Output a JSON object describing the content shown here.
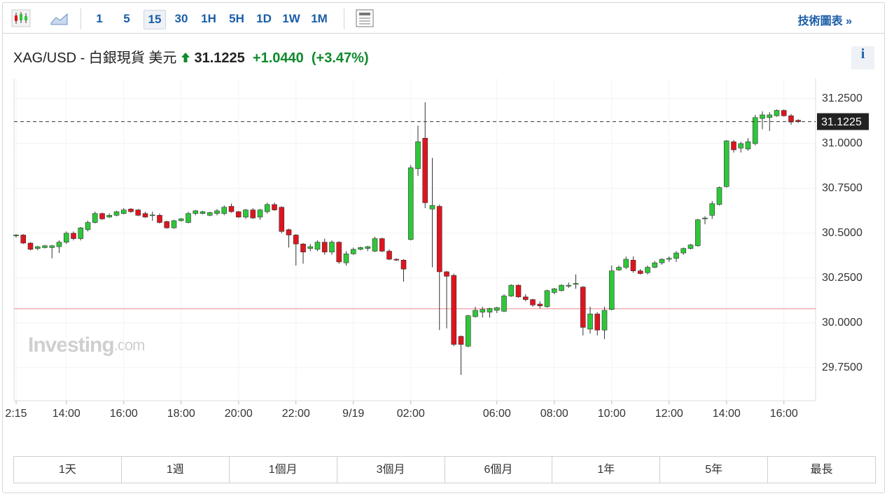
{
  "toolbar": {
    "intervals": [
      "1",
      "5",
      "15",
      "30",
      "1H",
      "5H",
      "1D",
      "1W",
      "1M"
    ],
    "active": "15",
    "link": "技術圖表 »"
  },
  "header": {
    "name": "XAG/USD - 白銀現貨 美元",
    "price": "31.1225",
    "change": "+1.0440",
    "change_pct": "(+3.47%)",
    "info": "i"
  },
  "watermark": {
    "brand": "Investing",
    "suffix": ".com"
  },
  "chart_data": {
    "type": "candlestick",
    "categories": [
      "2:15",
      null,
      null,
      null,
      null,
      null,
      null,
      "14:00",
      null,
      null,
      null,
      null,
      null,
      null,
      null,
      "16:00",
      null,
      null,
      null,
      null,
      null,
      null,
      null,
      "18:00",
      null,
      null,
      null,
      null,
      null,
      null,
      null,
      "20:00",
      null,
      null,
      null,
      null,
      null,
      null,
      null,
      "22:00",
      null,
      null,
      null,
      null,
      null,
      null,
      null,
      "9/19",
      null,
      null,
      null,
      null,
      null,
      null,
      null,
      "02:00",
      null,
      null,
      null,
      null,
      null,
      null,
      null,
      null,
      null,
      null,
      null,
      "06:00",
      null,
      null,
      null,
      null,
      null,
      null,
      null,
      "08:00",
      null,
      null,
      null,
      null,
      null,
      null,
      null,
      "10:00",
      null,
      null,
      null,
      null,
      null,
      null,
      null,
      "12:00",
      null,
      null,
      null,
      null,
      null,
      null,
      null,
      "14:00",
      null,
      null,
      null,
      null,
      null,
      null,
      null,
      "16:00",
      null,
      null
    ],
    "open": [
      30.485,
      30.49,
      30.445,
      30.415,
      30.42,
      30.42,
      30.425,
      30.45,
      30.5,
      30.47,
      30.52,
      30.56,
      30.61,
      30.59,
      30.6,
      30.61,
      30.635,
      30.63,
      30.61,
      30.6,
      30.6,
      30.565,
      30.53,
      30.57,
      30.56,
      30.61,
      30.61,
      30.6,
      30.61,
      30.61,
      30.65,
      30.62,
      30.59,
      30.63,
      30.59,
      30.62,
      30.66,
      30.645,
      30.52,
      30.49,
      30.44,
      30.415,
      30.41,
      30.45,
      30.395,
      30.45,
      30.335,
      30.385,
      30.41,
      30.415,
      30.4,
      30.47,
      30.4,
      30.355,
      30.35,
      30.465,
      30.86,
      31.03,
      30.635,
      30.65,
      30.285,
      30.265,
      29.925,
      29.87,
      30.035,
      30.06,
      30.06,
      30.07,
      30.065,
      30.15,
      30.21,
      30.145,
      30.13,
      30.105,
      30.09,
      30.17,
      30.18,
      30.205,
      30.215,
      30.2,
      29.965,
      30.05,
      29.96,
      30.075,
      30.295,
      30.31,
      30.35,
      30.29,
      30.28,
      30.31,
      30.335,
      30.355,
      30.36,
      30.39,
      30.415,
      30.43,
      30.58,
      30.6,
      30.66,
      30.76,
      31.01,
      30.975,
      30.97,
      31.0,
      31.14,
      31.145,
      31.155,
      31.185,
      31.155,
      31.13
    ],
    "high": [
      30.495,
      30.495,
      30.45,
      30.43,
      30.435,
      30.435,
      30.46,
      30.51,
      30.51,
      30.535,
      30.57,
      30.62,
      30.615,
      30.61,
      30.625,
      30.64,
      30.64,
      30.635,
      30.62,
      30.62,
      30.61,
      30.57,
      30.575,
      30.585,
      30.62,
      30.63,
      30.625,
      30.62,
      30.635,
      30.655,
      30.665,
      30.625,
      30.635,
      30.64,
      30.635,
      30.67,
      30.67,
      30.65,
      30.525,
      30.495,
      30.445,
      30.44,
      30.46,
      30.47,
      30.46,
      30.455,
      30.4,
      30.42,
      30.425,
      30.43,
      30.48,
      30.475,
      30.41,
      30.36,
      30.355,
      30.88,
      31.1,
      31.23,
      30.92,
      30.66,
      30.29,
      30.275,
      29.93,
      30.045,
      30.09,
      30.09,
      30.085,
      30.09,
      30.16,
      30.215,
      30.215,
      30.16,
      30.135,
      30.12,
      30.185,
      30.195,
      30.215,
      30.225,
      30.27,
      30.205,
      30.09,
      30.06,
      30.09,
      30.32,
      30.32,
      30.37,
      30.37,
      30.3,
      30.32,
      30.345,
      30.36,
      30.37,
      30.4,
      30.42,
      30.44,
      30.58,
      30.595,
      30.68,
      30.76,
      31.02,
      31.02,
      31.01,
      31.03,
      31.16,
      31.18,
      31.175,
      31.19,
      31.19,
      31.165,
      31.135
    ],
    "low": [
      30.475,
      30.44,
      30.405,
      30.405,
      30.415,
      30.36,
      30.39,
      30.44,
      30.46,
      30.46,
      30.51,
      30.555,
      30.575,
      30.585,
      30.595,
      30.605,
      30.615,
      30.595,
      30.585,
      30.57,
      30.555,
      30.525,
      30.525,
      30.565,
      30.555,
      30.6,
      30.605,
      30.595,
      30.6,
      30.6,
      30.615,
      30.585,
      30.58,
      30.58,
      30.575,
      30.61,
      30.625,
      30.5,
      30.42,
      30.32,
      30.33,
      30.4,
      30.4,
      30.38,
      30.38,
      30.33,
      30.32,
      30.38,
      30.405,
      30.4,
      30.395,
      30.395,
      30.35,
      30.345,
      30.23,
      30.46,
      30.82,
      30.64,
      30.31,
      29.96,
      29.97,
      29.87,
      29.71,
      29.865,
      30.03,
      30.03,
      30.03,
      30.055,
      30.06,
      30.145,
      30.14,
      30.12,
      30.09,
      30.08,
      30.085,
      30.16,
      30.175,
      30.195,
      30.19,
      29.93,
      29.94,
      29.93,
      29.91,
      30.07,
      30.29,
      30.3,
      30.28,
      30.27,
      30.27,
      30.305,
      30.325,
      30.34,
      30.34,
      30.38,
      30.41,
      30.425,
      30.55,
      30.58,
      30.655,
      30.755,
      30.95,
      30.95,
      30.96,
      30.99,
      31.08,
      31.07,
      31.15,
      31.15,
      31.105,
      31.115
    ],
    "close": [
      30.49,
      30.445,
      30.41,
      30.425,
      30.43,
      30.43,
      30.45,
      30.5,
      30.47,
      30.53,
      30.56,
      30.61,
      30.58,
      30.6,
      30.62,
      30.63,
      30.62,
      30.6,
      30.59,
      30.602,
      30.56,
      30.53,
      30.57,
      30.58,
      30.61,
      30.625,
      30.62,
      30.615,
      30.625,
      30.645,
      30.62,
      30.59,
      30.63,
      30.585,
      30.63,
      30.66,
      30.63,
      30.51,
      30.49,
      30.44,
      30.395,
      30.425,
      30.45,
      30.395,
      30.45,
      30.34,
      30.385,
      30.41,
      30.42,
      30.425,
      30.47,
      30.4,
      30.355,
      30.35,
      30.3,
      30.865,
      31.01,
      30.67,
      30.655,
      30.285,
      30.26,
      29.88,
      29.88,
      30.04,
      30.07,
      30.075,
      30.08,
      30.085,
      30.15,
      30.21,
      30.145,
      30.13,
      30.1,
      30.095,
      30.18,
      30.19,
      30.21,
      30.21,
      30.22,
      29.975,
      30.05,
      29.96,
      30.07,
      30.29,
      30.31,
      30.355,
      30.29,
      30.275,
      30.31,
      30.335,
      30.355,
      30.36,
      30.39,
      30.415,
      30.435,
      30.575,
      30.585,
      30.665,
      30.755,
      31.015,
      30.965,
      31.0,
      31.01,
      31.145,
      31.16,
      31.16,
      31.185,
      31.155,
      31.12,
      31.1225
    ],
    "up_color": "#2fc73a",
    "down_color": "#e0141e",
    "ylim": [
      29.566,
      31.363
    ],
    "yticks": [
      {
        "value": 29.75,
        "label": "29.7500"
      },
      {
        "value": 30,
        "label": "30.0000"
      },
      {
        "value": 30.25,
        "label": "30.2500"
      },
      {
        "value": 30.5,
        "label": "30.5000"
      },
      {
        "value": 30.75,
        "label": "30.7500"
      },
      {
        "value": 31,
        "label": "31.0000"
      },
      {
        "value": 31.25,
        "label": "31.2500"
      }
    ],
    "last_price": 31.1225,
    "previous_close": 30.0785,
    "grid": true
  },
  "range_buttons": [
    "1天",
    "1週",
    "1個月",
    "3個月",
    "6個月",
    "1年",
    "5年",
    "最長"
  ]
}
